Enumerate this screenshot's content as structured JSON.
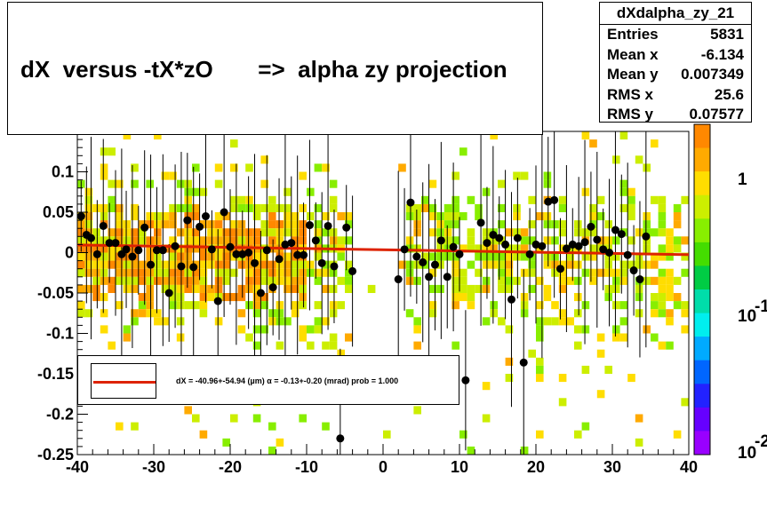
{
  "title": "dX  versus -tX*zO       =>  alpha zy projection",
  "stats": {
    "name": "dXdalpha_zy_21",
    "rows": [
      {
        "label": "Entries",
        "value": "5831"
      },
      {
        "label": "Mean x",
        "value": "-6.134"
      },
      {
        "label": "Mean y",
        "value": "0.007349"
      },
      {
        "label": "RMS x",
        "value": "25.6"
      },
      {
        "label": "RMS y",
        "value": "0.07577"
      }
    ]
  },
  "legend": {
    "text": "dX = -40.96+-54.94 (µm) α = -0.13+-0.20 (mrad) prob = 1.000",
    "line_color": "#dd2200"
  },
  "palette": {
    "labels": [
      "1",
      "10",
      "-1",
      "10",
      "-2"
    ],
    "colors": [
      "#ff8800",
      "#ffaa00",
      "#ffdd00",
      "#ccee00",
      "#88ee00",
      "#44dd00",
      "#00cc44",
      "#00ddaa",
      "#00eeee",
      "#00aaff",
      "#0066ff",
      "#2222ff",
      "#6600ff",
      "#9900ff"
    ]
  },
  "chart_data": {
    "type": "scatter",
    "xlim": [
      -40,
      40
    ],
    "ylim": [
      -0.25,
      0.15
    ],
    "x_ticks": [
      "-40",
      "-30",
      "-20",
      "-10",
      "0",
      "10",
      "20",
      "30",
      "40"
    ],
    "y_ticks": [
      "-0.25",
      "-0.2",
      "-0.15",
      "-0.1",
      "-0.05",
      "0",
      "0.05",
      "0.1"
    ],
    "profile_points": [
      {
        "x": -39.5,
        "y": 0.045
      },
      {
        "x": -38.8,
        "y": 0.022
      },
      {
        "x": -38.2,
        "y": 0.018
      },
      {
        "x": -37.4,
        "y": -0.002
      },
      {
        "x": -36.6,
        "y": 0.033
      },
      {
        "x": -35.8,
        "y": 0.012
      },
      {
        "x": -35.0,
        "y": 0.012
      },
      {
        "x": -34.2,
        "y": -0.002
      },
      {
        "x": -33.6,
        "y": 0.004
      },
      {
        "x": -32.8,
        "y": -0.005
      },
      {
        "x": -32.0,
        "y": 0.003
      },
      {
        "x": -31.2,
        "y": 0.031
      },
      {
        "x": -30.4,
        "y": -0.015
      },
      {
        "x": -29.6,
        "y": 0.003
      },
      {
        "x": -28.8,
        "y": 0.003
      },
      {
        "x": -28.0,
        "y": -0.05
      },
      {
        "x": -27.2,
        "y": 0.008
      },
      {
        "x": -26.4,
        "y": -0.017
      },
      {
        "x": -25.6,
        "y": 0.04
      },
      {
        "x": -24.8,
        "y": -0.018
      },
      {
        "x": -24.0,
        "y": 0.032
      },
      {
        "x": -23.2,
        "y": 0.045
      },
      {
        "x": -22.4,
        "y": 0.004
      },
      {
        "x": -21.6,
        "y": -0.06
      },
      {
        "x": -20.8,
        "y": 0.05
      },
      {
        "x": -20.0,
        "y": 0.007
      },
      {
        "x": -19.2,
        "y": -0.002
      },
      {
        "x": -18.4,
        "y": -0.002
      },
      {
        "x": -17.6,
        "y": 0.0
      },
      {
        "x": -16.8,
        "y": -0.013
      },
      {
        "x": -16.0,
        "y": -0.05
      },
      {
        "x": -15.2,
        "y": 0.003
      },
      {
        "x": -14.4,
        "y": -0.043
      },
      {
        "x": -13.6,
        "y": -0.008
      },
      {
        "x": -12.8,
        "y": 0.01
      },
      {
        "x": -12.0,
        "y": 0.012
      },
      {
        "x": -11.2,
        "y": -0.003
      },
      {
        "x": -10.4,
        "y": -0.003
      },
      {
        "x": -9.6,
        "y": 0.034
      },
      {
        "x": -8.8,
        "y": 0.015
      },
      {
        "x": -8.0,
        "y": -0.013
      },
      {
        "x": -7.2,
        "y": 0.033
      },
      {
        "x": -6.4,
        "y": -0.017
      },
      {
        "x": -5.6,
        "y": -0.23
      },
      {
        "x": -4.8,
        "y": 0.031
      },
      {
        "x": -4.0,
        "y": -0.023
      },
      {
        "x": 2.0,
        "y": -0.033
      },
      {
        "x": 2.8,
        "y": 0.004
      },
      {
        "x": 3.6,
        "y": 0.062
      },
      {
        "x": 4.4,
        "y": -0.005
      },
      {
        "x": 5.2,
        "y": -0.012
      },
      {
        "x": 6.0,
        "y": -0.03
      },
      {
        "x": 6.8,
        "y": -0.015
      },
      {
        "x": 7.6,
        "y": 0.015
      },
      {
        "x": 8.4,
        "y": -0.03
      },
      {
        "x": 9.2,
        "y": 0.007
      },
      {
        "x": 10.0,
        "y": -0.002
      },
      {
        "x": 10.8,
        "y": -0.158
      },
      {
        "x": 12.8,
        "y": 0.037
      },
      {
        "x": 13.6,
        "y": 0.012
      },
      {
        "x": 14.4,
        "y": 0.022
      },
      {
        "x": 15.2,
        "y": 0.018
      },
      {
        "x": 16.0,
        "y": 0.01
      },
      {
        "x": 16.8,
        "y": -0.058
      },
      {
        "x": 17.6,
        "y": 0.018
      },
      {
        "x": 18.4,
        "y": -0.136
      },
      {
        "x": 19.2,
        "y": -0.002
      },
      {
        "x": 20.0,
        "y": 0.01
      },
      {
        "x": 20.8,
        "y": 0.008
      },
      {
        "x": 21.6,
        "y": 0.063
      },
      {
        "x": 22.4,
        "y": 0.065
      },
      {
        "x": 23.2,
        "y": -0.02
      },
      {
        "x": 24.0,
        "y": 0.005
      },
      {
        "x": 24.8,
        "y": 0.01
      },
      {
        "x": 25.6,
        "y": 0.008
      },
      {
        "x": 26.4,
        "y": 0.013
      },
      {
        "x": 27.2,
        "y": 0.032
      },
      {
        "x": 28.0,
        "y": 0.016
      },
      {
        "x": 28.8,
        "y": 0.004
      },
      {
        "x": 29.6,
        "y": 0.0
      },
      {
        "x": 30.4,
        "y": 0.028
      },
      {
        "x": 31.2,
        "y": 0.023
      },
      {
        "x": 32.0,
        "y": -0.003
      },
      {
        "x": 32.8,
        "y": -0.022
      },
      {
        "x": 33.6,
        "y": -0.033
      },
      {
        "x": 34.4,
        "y": 0.02
      }
    ],
    "fit_line": {
      "x": [
        -40,
        40
      ],
      "y": [
        0.0095,
        -0.0025
      ]
    }
  }
}
